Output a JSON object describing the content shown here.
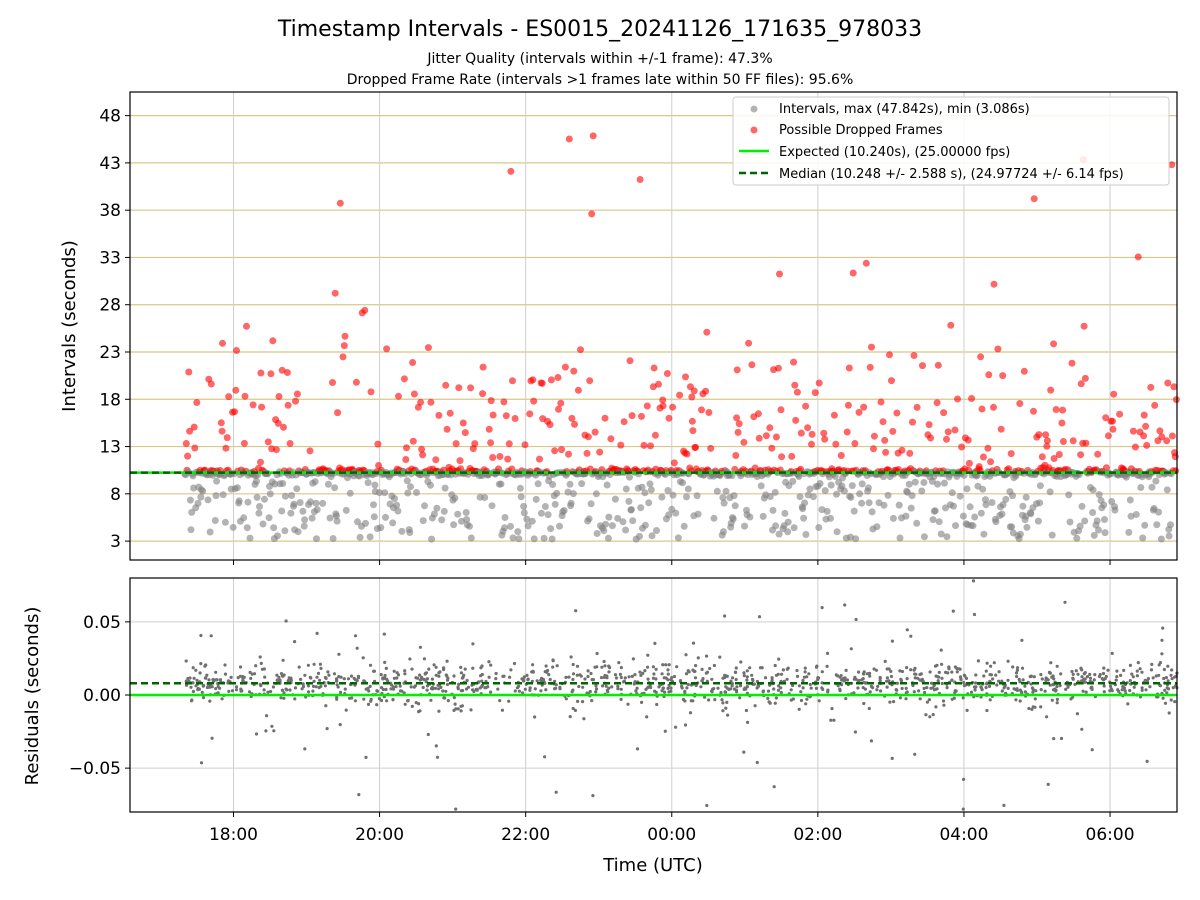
{
  "chart_data": [
    {
      "type": "scatter",
      "title": "Timestamp Intervals - ES0015_20241126_171635_978033",
      "subtitle_lines": [
        "Jitter Quality (intervals within +/-1 frame): 47.3%",
        "Dropped Frame Rate (intervals >1 frames late within 50 FF files): 95.6%"
      ],
      "ylabel": "Intervals (seconds)",
      "x_start": "17:20",
      "x_end": "06:55",
      "xlim": [
        "16:35",
        "06:55"
      ],
      "ylim": [
        1.0,
        50.5
      ],
      "yticks": [
        3,
        8,
        13,
        18,
        23,
        28,
        33,
        38,
        43,
        48
      ],
      "grid": true,
      "legend_position": "upper right",
      "series": [
        {
          "name": "Intervals, max (47.842s), min (3.086s)",
          "color": "#808080",
          "kind": "points",
          "y_range": [
            3.086,
            47.842
          ]
        },
        {
          "name": "Possible Dropped Frames",
          "color": "#ff0000",
          "kind": "points"
        },
        {
          "name": "Expected (10.240s), (25.00000 fps)",
          "color": "#00ee00",
          "kind": "hline",
          "y": 10.24
        },
        {
          "name": "Median (10.248 +/- 2.588 s), (24.97724 +/- 6.14 fps)",
          "color": "#006400",
          "kind": "hline-dashed",
          "y": 10.248
        }
      ]
    },
    {
      "type": "scatter",
      "xlabel": "Time (UTC)",
      "ylabel": "Residuals (seconds)",
      "xlim": [
        "16:35",
        "06:55"
      ],
      "ylim": [
        -0.08,
        0.08
      ],
      "yticks": [
        -0.05,
        0.0,
        0.05
      ],
      "ytick_labels": [
        "−0.05",
        "0.00",
        "0.05"
      ],
      "xticks": [
        "18:00",
        "20:00",
        "22:00",
        "00:00",
        "02:00",
        "04:00",
        "06:00"
      ],
      "grid": true,
      "lines": [
        {
          "color": "#00ee00",
          "y": 0.0,
          "style": "solid"
        },
        {
          "color": "#006400",
          "y": 0.008,
          "style": "dashed"
        }
      ],
      "points_color": "#707070"
    }
  ]
}
